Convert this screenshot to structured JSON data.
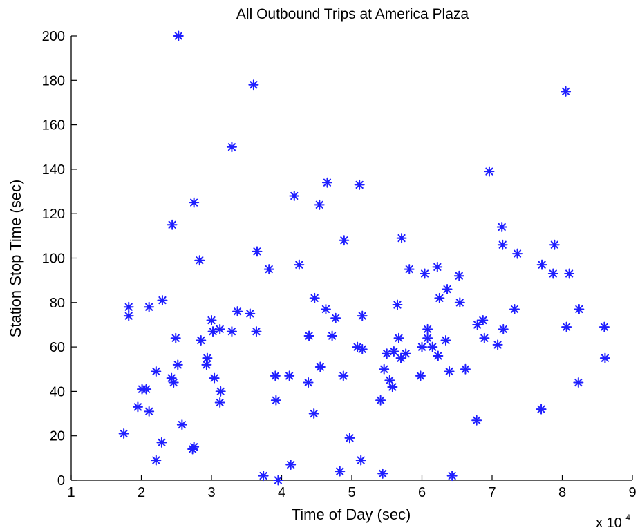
{
  "chart_data": {
    "type": "scatter",
    "title": "All Outbound Trips at America Plaza",
    "xlabel": "Time of Day (sec)",
    "ylabel": "Station Stop Time (sec)",
    "x_scale_base": "x 10",
    "x_scale_exponent": "4",
    "xlim": [
      1,
      9
    ],
    "ylim": [
      0,
      200
    ],
    "x_ticks": [
      1,
      2,
      3,
      4,
      5,
      6,
      7,
      8,
      9
    ],
    "y_ticks": [
      0,
      20,
      40,
      60,
      80,
      100,
      120,
      140,
      160,
      180,
      200
    ],
    "grid": false,
    "marker": "asterisk",
    "color": "#1f1fff",
    "series": [
      {
        "points": [
          [
            17500,
            21
          ],
          [
            18200,
            78
          ],
          [
            18200,
            74
          ],
          [
            19500,
            33
          ],
          [
            20100,
            41
          ],
          [
            20700,
            41
          ],
          [
            21100,
            78
          ],
          [
            21100,
            31
          ],
          [
            22100,
            9
          ],
          [
            22100,
            49
          ],
          [
            22900,
            17
          ],
          [
            23000,
            81
          ],
          [
            24300,
            46
          ],
          [
            24400,
            115
          ],
          [
            24600,
            44
          ],
          [
            24900,
            64
          ],
          [
            25200,
            52
          ],
          [
            25300,
            200
          ],
          [
            25800,
            25
          ],
          [
            27300,
            14
          ],
          [
            27500,
            15
          ],
          [
            27500,
            125
          ],
          [
            28300,
            99
          ],
          [
            28500,
            63
          ],
          [
            29300,
            52
          ],
          [
            29400,
            55
          ],
          [
            30000,
            72
          ],
          [
            30200,
            67
          ],
          [
            30400,
            46
          ],
          [
            31200,
            68
          ],
          [
            31200,
            35
          ],
          [
            31300,
            40
          ],
          [
            32900,
            150
          ],
          [
            32900,
            67
          ],
          [
            33700,
            76
          ],
          [
            35500,
            75
          ],
          [
            36000,
            178
          ],
          [
            36400,
            67
          ],
          [
            36500,
            103
          ],
          [
            37400,
            2
          ],
          [
            38200,
            95
          ],
          [
            39100,
            47
          ],
          [
            39200,
            36
          ],
          [
            39500,
            0
          ],
          [
            41100,
            47
          ],
          [
            41300,
            7
          ],
          [
            41800,
            128
          ],
          [
            42500,
            97
          ],
          [
            43800,
            44
          ],
          [
            43900,
            65
          ],
          [
            44600,
            30
          ],
          [
            44700,
            82
          ],
          [
            45400,
            124
          ],
          [
            45500,
            51
          ],
          [
            46300,
            77
          ],
          [
            46500,
            134
          ],
          [
            47200,
            65
          ],
          [
            47700,
            73
          ],
          [
            48300,
            4
          ],
          [
            48800,
            47
          ],
          [
            48900,
            108
          ],
          [
            49700,
            19
          ],
          [
            50800,
            60
          ],
          [
            51100,
            133
          ],
          [
            51300,
            9
          ],
          [
            51500,
            74
          ],
          [
            51500,
            59
          ],
          [
            54100,
            36
          ],
          [
            54400,
            3
          ],
          [
            54600,
            50
          ],
          [
            55000,
            57
          ],
          [
            55400,
            45
          ],
          [
            55800,
            42
          ],
          [
            56000,
            58
          ],
          [
            56500,
            79
          ],
          [
            56700,
            64
          ],
          [
            57000,
            55
          ],
          [
            57100,
            109
          ],
          [
            57700,
            57
          ],
          [
            58200,
            95
          ],
          [
            59800,
            47
          ],
          [
            60000,
            60
          ],
          [
            60400,
            93
          ],
          [
            60800,
            64
          ],
          [
            60800,
            68
          ],
          [
            61500,
            60
          ],
          [
            62200,
            96
          ],
          [
            62300,
            56
          ],
          [
            62500,
            82
          ],
          [
            63400,
            63
          ],
          [
            63600,
            86
          ],
          [
            63900,
            49
          ],
          [
            64300,
            2
          ],
          [
            65300,
            92
          ],
          [
            65400,
            80
          ],
          [
            66200,
            50
          ],
          [
            67800,
            27
          ],
          [
            67900,
            70
          ],
          [
            68700,
            72
          ],
          [
            68900,
            64
          ],
          [
            69600,
            139
          ],
          [
            70800,
            61
          ],
          [
            71400,
            114
          ],
          [
            71500,
            106
          ],
          [
            71600,
            68
          ],
          [
            73200,
            77
          ],
          [
            73600,
            102
          ],
          [
            77000,
            32
          ],
          [
            77100,
            97
          ],
          [
            78700,
            93
          ],
          [
            78900,
            106
          ],
          [
            80500,
            175
          ],
          [
            80600,
            69
          ],
          [
            81000,
            93
          ],
          [
            82300,
            44
          ],
          [
            82400,
            77
          ],
          [
            86000,
            69
          ],
          [
            86100,
            55
          ]
        ]
      }
    ]
  }
}
